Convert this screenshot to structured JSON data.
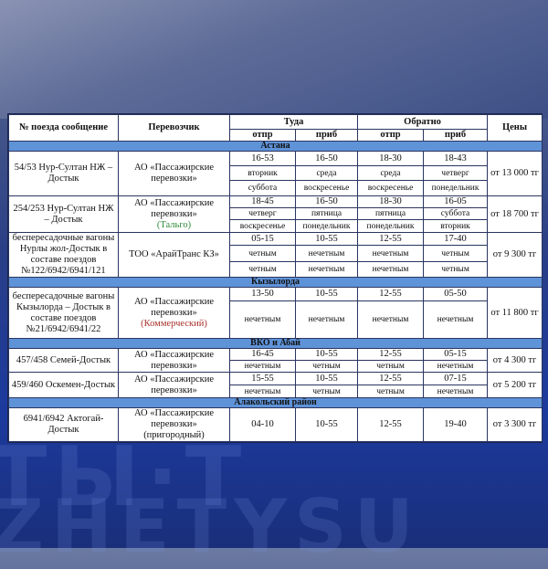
{
  "header": {
    "train": "№ поезда сообщение",
    "carrier": "Перевозчик",
    "there": "Туда",
    "back": "Обратно",
    "dep": "отпр",
    "arr": "приб",
    "price": "Цены"
  },
  "sections": [
    {
      "title": "Астана",
      "trains": [
        {
          "name": "54/53 Нур-Султан НЖ – Достык",
          "carrier": "АО «Пассажирские перевозки»",
          "note": "",
          "price": "от 13 000 тг",
          "subrows": [
            [
              "16-53",
              "16-50",
              "18-30",
              "18-43"
            ],
            [
              "вторник",
              "среда",
              "среда",
              "четверг"
            ],
            [
              "суббота",
              "воскресенье",
              "воскресенье",
              "понедельник"
            ]
          ]
        },
        {
          "name": "254/253 Нур-Султан НЖ – Достык",
          "carrier": "АО «Пассажирские перевозки»",
          "note": "(Тальго)",
          "note_color": "#2e8b3a",
          "price": "от 18 700 тг",
          "subrows": [
            [
              "18-45",
              "16-50",
              "18-30",
              "16-05"
            ],
            [
              "четверг",
              "пятница",
              "пятница",
              "суббота"
            ],
            [
              "воскресенье",
              "понедельник",
              "понедельник",
              "вторник"
            ]
          ]
        },
        {
          "name": "беспересадочные вагоны Нурлы жол-Достык в составе поездов №122/6942/6941/121",
          "carrier": "ТОО «АрайТранс КЗ»",
          "note": "",
          "price": "от 9 300 тг",
          "subrows": [
            [
              "05-15",
              "10-55",
              "12-55",
              "17-40"
            ],
            [
              "четным",
              "нечетным",
              "нечетным",
              "четным"
            ],
            [
              "четным",
              "нечетным",
              "нечетным",
              "четным"
            ]
          ]
        }
      ]
    },
    {
      "title": "Кызылорда",
      "trains": [
        {
          "name": "беспересадочные вагоны Кызылорда – Достык в составе поездов №21/6942/6941/22",
          "carrier": "АО «Пассажирские перевозки»",
          "note": "(Коммерческий)",
          "note_color": "#a8302a",
          "price": "от 11 800 тг",
          "subrows": [
            [
              "13-50",
              "10-55",
              "12-55",
              "05-50"
            ],
            [
              "нечетным",
              "нечетным",
              "нечетным",
              "нечетным"
            ]
          ]
        }
      ]
    },
    {
      "title": "ВКО и Абай",
      "trains": [
        {
          "name": "457/458 Семей-Достык",
          "carrier": "АО «Пассажирские перевозки»",
          "note": "",
          "price": "от 4 300 тг",
          "subrows": [
            [
              "16-45",
              "10-55",
              "12-55",
              "05-15"
            ],
            [
              "нечетным",
              "четным",
              "четным",
              "нечетным"
            ]
          ]
        },
        {
          "name": "459/460 Оскемен-Достык",
          "carrier": "АО «Пассажирские перевозки»",
          "note": "",
          "price": "от 5 200 тг",
          "subrows": [
            [
              "15-55",
              "10-55",
              "12-55",
              "07-15"
            ],
            [
              "нечетным",
              "четным",
              "четным",
              "нечетным"
            ]
          ]
        }
      ]
    },
    {
      "title": "Алакольский район",
      "trains": [
        {
          "name": "6941/6942 Актогай-Достык",
          "carrier": "АО «Пассажирские перевозки»",
          "note": "(пригородный)",
          "note_color": "#111111",
          "price": "от 3 300 тг",
          "subrows": [
            [
              "04-10",
              "10-55",
              "12-55",
              "19-40"
            ]
          ]
        }
      ]
    }
  ],
  "background": {
    "watermark": "ZHETYSU",
    "accent": "#5f93d8"
  }
}
